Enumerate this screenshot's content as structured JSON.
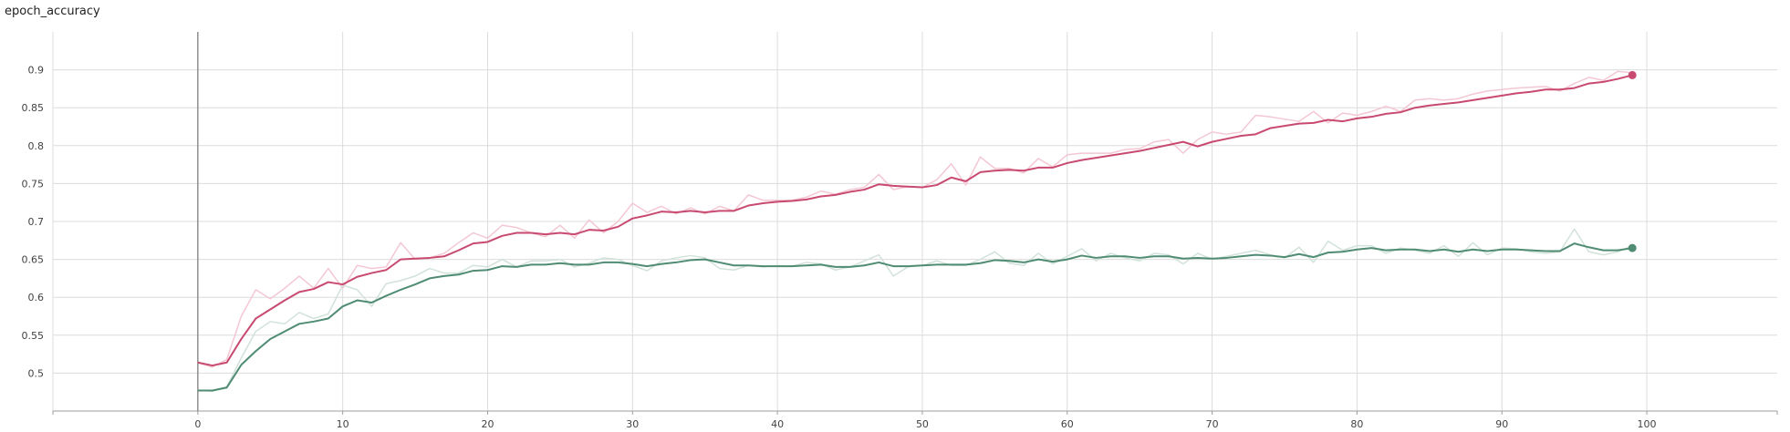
{
  "card": {
    "title": "epoch_accuracy"
  },
  "chart_data": {
    "type": "line",
    "title": "epoch_accuracy",
    "xlim": [
      -10,
      109
    ],
    "ylim": [
      0.45,
      0.95
    ],
    "xticks": [
      0,
      10,
      20,
      30,
      40,
      50,
      60,
      70,
      80,
      90,
      100
    ],
    "yticks": [
      0.5,
      0.55,
      0.6,
      0.65,
      0.7,
      0.75,
      0.8,
      0.85,
      0.9
    ],
    "grid": true,
    "legend": "none",
    "colors": {
      "series1": "#c94a71",
      "series1_raw": "#f3c7d3",
      "series2": "#4f8c73",
      "series2_raw": "#d2e2da",
      "grid": "#dcdcdc",
      "axis": "#9e9e9e"
    },
    "series": [
      {
        "smoothed": [
          0.514,
          0.51,
          0.514,
          0.545,
          0.572,
          0.584,
          0.596,
          0.607,
          0.611,
          0.62,
          0.617,
          0.627,
          0.632,
          0.636,
          0.65,
          0.651,
          0.652,
          0.654,
          0.662,
          0.671,
          0.673,
          0.681,
          0.685,
          0.685,
          0.683,
          0.685,
          0.683,
          0.689,
          0.688,
          0.693,
          0.704,
          0.708,
          0.713,
          0.712,
          0.714,
          0.712,
          0.714,
          0.714,
          0.721,
          0.724,
          0.726,
          0.727,
          0.729,
          0.733,
          0.735,
          0.739,
          0.742,
          0.749,
          0.747,
          0.746,
          0.745,
          0.748,
          0.758,
          0.753,
          0.765,
          0.767,
          0.768,
          0.767,
          0.771,
          0.771,
          0.777,
          0.781,
          0.784,
          0.787,
          0.79,
          0.793,
          0.797,
          0.801,
          0.805,
          0.799,
          0.805,
          0.809,
          0.813,
          0.815,
          0.823,
          0.826,
          0.829,
          0.83,
          0.834,
          0.832,
          0.836,
          0.838,
          0.842,
          0.844,
          0.85,
          0.853,
          0.855,
          0.857,
          0.86,
          0.863,
          0.866,
          0.869,
          0.871,
          0.874,
          0.874,
          0.876,
          0.882,
          0.884,
          0.888,
          0.893
        ],
        "raw": [
          0.514,
          0.508,
          0.518,
          0.575,
          0.61,
          0.598,
          0.612,
          0.628,
          0.612,
          0.638,
          0.612,
          0.642,
          0.638,
          0.64,
          0.672,
          0.65,
          0.652,
          0.658,
          0.672,
          0.685,
          0.678,
          0.695,
          0.692,
          0.685,
          0.68,
          0.695,
          0.678,
          0.702,
          0.685,
          0.7,
          0.724,
          0.712,
          0.72,
          0.71,
          0.718,
          0.71,
          0.72,
          0.714,
          0.735,
          0.728,
          0.728,
          0.728,
          0.732,
          0.74,
          0.736,
          0.742,
          0.745,
          0.762,
          0.742,
          0.746,
          0.745,
          0.755,
          0.776,
          0.748,
          0.785,
          0.77,
          0.77,
          0.764,
          0.783,
          0.772,
          0.788,
          0.79,
          0.79,
          0.79,
          0.795,
          0.796,
          0.805,
          0.808,
          0.79,
          0.808,
          0.818,
          0.815,
          0.818,
          0.84,
          0.838,
          0.835,
          0.832,
          0.845,
          0.83,
          0.843,
          0.84,
          0.845,
          0.852,
          0.845,
          0.86,
          0.862,
          0.86,
          0.862,
          0.868,
          0.872,
          0.874,
          0.876,
          0.877,
          0.878,
          0.872,
          0.882,
          0.89,
          0.886,
          0.898,
          0.896
        ],
        "last_point": [
          99,
          0.893
        ]
      },
      {
        "smoothed": [
          0.477,
          0.477,
          0.481,
          0.511,
          0.529,
          0.545,
          0.555,
          0.565,
          0.568,
          0.572,
          0.588,
          0.596,
          0.593,
          0.602,
          0.61,
          0.617,
          0.625,
          0.628,
          0.63,
          0.635,
          0.636,
          0.641,
          0.64,
          0.643,
          0.643,
          0.645,
          0.643,
          0.643,
          0.646,
          0.646,
          0.644,
          0.641,
          0.644,
          0.646,
          0.649,
          0.65,
          0.646,
          0.642,
          0.642,
          0.641,
          0.641,
          0.641,
          0.642,
          0.643,
          0.64,
          0.64,
          0.642,
          0.646,
          0.641,
          0.641,
          0.642,
          0.643,
          0.643,
          0.643,
          0.645,
          0.649,
          0.648,
          0.646,
          0.65,
          0.647,
          0.65,
          0.655,
          0.652,
          0.654,
          0.654,
          0.652,
          0.654,
          0.654,
          0.651,
          0.652,
          0.651,
          0.652,
          0.654,
          0.656,
          0.655,
          0.653,
          0.657,
          0.653,
          0.659,
          0.66,
          0.663,
          0.665,
          0.662,
          0.663,
          0.663,
          0.661,
          0.663,
          0.66,
          0.663,
          0.661,
          0.663,
          0.663,
          0.662,
          0.661,
          0.661,
          0.671,
          0.666,
          0.662,
          0.662,
          0.665
        ],
        "raw": [
          0.478,
          0.476,
          0.482,
          0.52,
          0.555,
          0.568,
          0.565,
          0.58,
          0.572,
          0.578,
          0.616,
          0.61,
          0.588,
          0.618,
          0.622,
          0.628,
          0.638,
          0.632,
          0.632,
          0.642,
          0.64,
          0.65,
          0.64,
          0.648,
          0.648,
          0.65,
          0.64,
          0.645,
          0.652,
          0.65,
          0.642,
          0.635,
          0.648,
          0.652,
          0.655,
          0.652,
          0.638,
          0.636,
          0.642,
          0.64,
          0.642,
          0.641,
          0.646,
          0.644,
          0.636,
          0.64,
          0.648,
          0.656,
          0.628,
          0.64,
          0.642,
          0.648,
          0.642,
          0.642,
          0.65,
          0.66,
          0.645,
          0.642,
          0.658,
          0.644,
          0.654,
          0.664,
          0.648,
          0.658,
          0.652,
          0.648,
          0.658,
          0.656,
          0.644,
          0.658,
          0.65,
          0.654,
          0.658,
          0.662,
          0.656,
          0.652,
          0.666,
          0.646,
          0.674,
          0.662,
          0.668,
          0.668,
          0.658,
          0.665,
          0.662,
          0.658,
          0.668,
          0.654,
          0.672,
          0.656,
          0.665,
          0.664,
          0.66,
          0.658,
          0.66,
          0.69,
          0.66,
          0.656,
          0.66,
          0.668
        ],
        "last_point": [
          99,
          0.665
        ]
      }
    ]
  }
}
